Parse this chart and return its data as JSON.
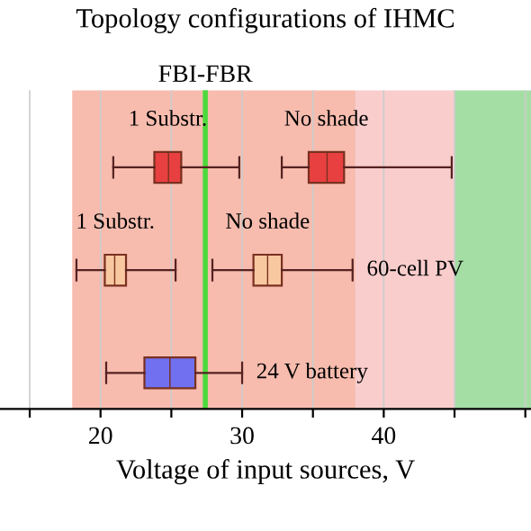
{
  "chart_data": {
    "type": "box",
    "orientation": "horizontal",
    "title": "Topology configurations of IHMC",
    "xlabel": "Voltage of input sources, V",
    "categories": [
      null,
      "60-cell PV",
      "24 V battery"
    ],
    "series": [
      {
        "name": "1 Substr.",
        "colors": [
          "#e84040",
          "#f8c8a0",
          null
        ],
        "boxes": [
          {
            "low": 20.9,
            "q1": 23.8,
            "median": 24.8,
            "q3": 25.7,
            "high": 29.8
          },
          {
            "low": 18.3,
            "q1": 20.3,
            "median": 21.0,
            "q3": 21.8,
            "high": 25.3
          },
          null
        ]
      },
      {
        "name": "No shade",
        "colors": [
          "#e84040",
          "#f8c8a0",
          null
        ],
        "boxes": [
          {
            "low": 32.8,
            "q1": 34.7,
            "median": 36.0,
            "q3": 37.2,
            "high": 44.8
          },
          {
            "low": 27.9,
            "q1": 30.8,
            "median": 31.8,
            "q3": 32.8,
            "high": 37.8
          },
          null
        ]
      },
      {
        "colors": [
          null,
          null,
          "#7070f0"
        ],
        "boxes": [
          null,
          null,
          {
            "low": 20.4,
            "q1": 23.1,
            "median": 24.9,
            "q3": 26.7,
            "high": 30.0
          }
        ]
      }
    ],
    "bands": [
      {
        "axis": "x",
        "from": 18,
        "to": 38,
        "color": "#f3a08c"
      },
      {
        "axis": "x",
        "from": 38,
        "to": 45,
        "color": "#f8b8b8"
      },
      {
        "axis": "x",
        "from": 45,
        "to": 50.4,
        "color": "#7fd07f"
      }
    ],
    "ref_lines": [
      {
        "axis": "x",
        "value": 27.4,
        "label": "FBI-FBR",
        "color": "#20e020"
      }
    ],
    "xlim": [
      12.9,
      50.4
    ],
    "xticks": [
      {
        "value": 15,
        "label": null
      },
      20,
      {
        "value": 25,
        "label": null
      },
      30,
      {
        "value": 35,
        "label": null
      },
      40,
      {
        "value": 45,
        "label": null
      },
      {
        "value": 50,
        "label": null
      }
    ],
    "grid": "x"
  }
}
